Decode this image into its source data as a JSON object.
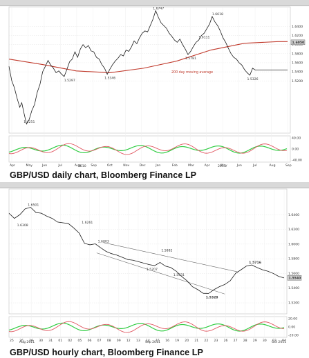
{
  "charts": [
    {
      "caption": "GBP/USD daily chart, Bloomberg Finance LP",
      "chart_data": {
        "type": "line",
        "title": "",
        "xlabel": "",
        "ylabel": "",
        "x_ticks": [
          "Apr",
          "May",
          "Jun",
          "Jul",
          "Aug",
          "Sep",
          "Oct",
          "Nov",
          "Dec",
          "Jan",
          "Feb",
          "Mar",
          "Apr",
          "May",
          "Jun",
          "Jul",
          "Aug",
          "Sep"
        ],
        "year_labels": [
          "2010",
          "2011"
        ],
        "y_ticks": [
          "1.6400",
          "1.6200",
          "1.6000",
          "1.5800",
          "1.5600",
          "1.5400",
          "1.5200"
        ],
        "ylim": [
          1.405,
          1.683
        ],
        "last_value_label": "1.6050",
        "legend_note": "200 day moving average",
        "series": [
          {
            "x": [
              0,
              4,
              8,
              12,
              16,
              19,
              22,
              26,
              30,
              34,
              38,
              42,
              46,
              50,
              54,
              58,
              62,
              66,
              70,
              74,
              78,
              82,
              86,
              90,
              94,
              98,
              102,
              106,
              110,
              114,
              118,
              122,
              126,
              130,
              134,
              138,
              142,
              146,
              150,
              154,
              158,
              162,
              166,
              170,
              174,
              178,
              182,
              186,
              190,
              194,
              198,
              202,
              206,
              210,
              214,
              218,
              222,
              226,
              230,
              234,
              238,
              242,
              246,
              250,
              254,
              258,
              262,
              266,
              270,
              274,
              278,
              282,
              286,
              290,
              294,
              298,
              302,
              306,
              310,
              314,
              318,
              322,
              326,
              330,
              334,
              338,
              342,
              346,
              350,
              354,
              358,
              362,
              366,
              370,
              374,
              378,
              382,
              386,
              390,
              394,
              398,
              402,
              406,
              410,
              414
            ],
            "values": [
              1.552,
              1.521,
              1.505,
              1.482,
              1.462,
              1.472,
              1.451,
              1.4251,
              1.435,
              1.455,
              1.468,
              1.495,
              1.512,
              1.54,
              1.552,
              1.565,
              1.555,
              1.548,
              1.538,
              1.542,
              1.535,
              1.5297,
              1.545,
              1.562,
              1.568,
              1.584,
              1.572,
              1.59,
              1.6,
              1.593,
              1.598,
              1.586,
              1.584,
              1.572,
              1.568,
              1.556,
              1.548,
              1.5346,
              1.546,
              1.556,
              1.564,
              1.57,
              1.578,
              1.575,
              1.588,
              1.585,
              1.595,
              1.608,
              1.602,
              1.615,
              1.625,
              1.63,
              1.628,
              1.642,
              1.656,
              1.6747,
              1.66,
              1.648,
              1.642,
              1.636,
              1.625,
              1.618,
              1.61,
              1.605,
              1.612,
              1.6,
              1.59,
              1.5781,
              1.585,
              1.596,
              1.605,
              1.61,
              1.62,
              1.625,
              1.635,
              1.645,
              1.6618,
              1.65,
              1.642,
              1.63,
              1.615,
              1.605,
              1.592,
              1.58,
              1.572,
              1.568,
              1.56,
              1.555,
              1.545,
              1.538,
              1.5326,
              1.548,
              1.544,
              1.544,
              1.544,
              1.544,
              1.544,
              1.544,
              1.544,
              1.544,
              1.544,
              1.544,
              1.544,
              1.544,
              1.544
            ]
          },
          {
            "name": "200 day moving average",
            "x": [
              0,
              50,
              100,
              150,
              200,
              250,
              300,
              350,
              400,
              414
            ],
            "values": [
              1.568,
              1.556,
              1.542,
              1.538,
              1.548,
              1.564,
              1.588,
              1.603,
              1.6065,
              1.6065
            ]
          }
        ],
        "annotations": [
          "1.4251",
          "1.5297",
          "1.5346",
          "1.6747",
          "1.5781",
          "1.6111",
          "1.6618",
          "1.5326"
        ],
        "indicator_ticks": [
          "40.00",
          "0.00",
          "-40.00"
        ]
      }
    },
    {
      "caption": "GBP/USD hourly chart, Bloomberg Finance LP",
      "chart_data": {
        "type": "line",
        "title": "",
        "xlabel": "",
        "ylabel": "",
        "x_ticks": [
          "25",
          "26",
          "29",
          "30",
          "31",
          "01",
          "02",
          "05",
          "06",
          "07",
          "08",
          "09",
          "12",
          "13",
          "14",
          "15",
          "16",
          "19",
          "20",
          "21",
          "22",
          "23",
          "26",
          "27",
          "28",
          "29",
          "30",
          "03",
          "04"
        ],
        "period_labels": [
          "Aug 2011",
          "Sep 2011",
          "Oct 2011"
        ],
        "y_ticks": [
          "1.6400",
          "1.6200",
          "1.6000",
          "1.5800",
          "1.5600",
          "1.5400",
          "1.5200"
        ],
        "ylim": [
          1.505,
          1.675
        ],
        "last_value_label": "1.5540",
        "annotations": [
          "1.6501",
          "1.6308",
          "1.6261",
          "1.6003",
          "1.5882",
          "1.5707",
          "1.5631",
          "1.5328",
          "1.5716"
        ],
        "series": [
          {
            "x": [
              0,
              8,
              16,
              24,
              32,
              40,
              48,
              56,
              64,
              72,
              80,
              88,
              96,
              104,
              112,
              120,
              128,
              136,
              144,
              152,
              160,
              168,
              176,
              184,
              192,
              200,
              208,
              216,
              224,
              232,
              240,
              248,
              256,
              264,
              272,
              280,
              288,
              296,
              304,
              312,
              320,
              328,
              336,
              344,
              352,
              360,
              368,
              376,
              384,
              392,
              400,
              408
            ],
            "values": [
              1.642,
              1.635,
              1.64,
              1.648,
              1.6501,
              1.643,
              1.642,
              1.638,
              1.635,
              1.63,
              1.629,
              1.628,
              1.622,
              1.615,
              1.601,
              1.599,
              1.6003,
              1.595,
              1.59,
              1.587,
              1.585,
              1.582,
              1.579,
              1.578,
              1.576,
              1.574,
              1.572,
              1.5707,
              1.575,
              1.57,
              1.568,
              1.5631,
              1.556,
              1.55,
              1.542,
              1.538,
              1.533,
              1.5328,
              1.538,
              1.542,
              1.545,
              1.55,
              1.56,
              1.565,
              1.57,
              1.5716,
              1.568,
              1.565,
              1.563,
              1.56,
              1.556,
              1.554
            ]
          },
          {
            "name": "upper channel",
            "x": [
              140,
              340
            ],
            "values": [
              1.602,
              1.562
            ]
          },
          {
            "name": "lower channel",
            "x": [
              130,
              320
            ],
            "values": [
              1.588,
              1.532
            ]
          }
        ],
        "indicator_ticks": [
          "20.00",
          "0.00",
          "-20.00"
        ]
      }
    }
  ]
}
